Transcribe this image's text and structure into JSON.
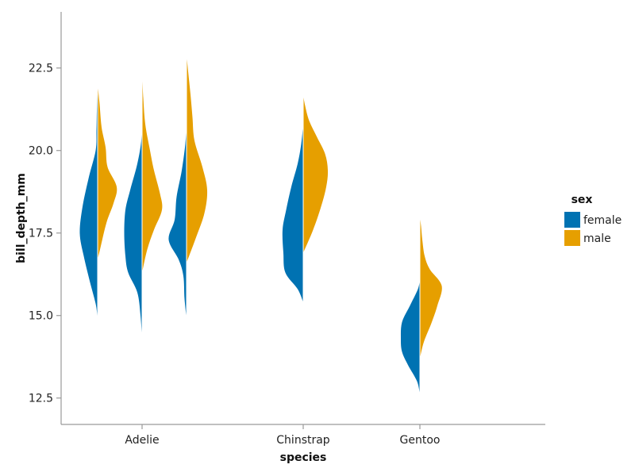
{
  "chart_data": {
    "type": "violin",
    "orientation": "vertical",
    "split": true,
    "xlabel": "species",
    "ylabel": "bill_depth_mm",
    "ylim": [
      11.7,
      24.2
    ],
    "yticks": [
      12.5,
      15.0,
      17.5,
      20.0,
      22.5
    ],
    "ytick_labels": [
      "12.5",
      "15.0",
      "17.5",
      "20.0",
      "22.5"
    ],
    "categories": [
      "Adelie",
      "Chinstrap",
      "Gentoo"
    ],
    "legend": {
      "title": "sex",
      "placement": "right",
      "entries": [
        {
          "label": "female",
          "color": "#0072b2"
        },
        {
          "label": "male",
          "color": "#e69f00"
        }
      ]
    },
    "grid": false,
    "violins": [
      {
        "category": "Adelie",
        "offset": -1,
        "female": {
          "y": [
            14.8,
            15.3,
            16.0,
            16.8,
            17.5,
            18.3,
            19.2,
            20.0,
            20.6,
            21.2,
            21.7,
            22.0
          ],
          "w": [
            0.0,
            0.04,
            0.19,
            0.35,
            0.45,
            0.38,
            0.22,
            0.05,
            0.03,
            0.02,
            0.01,
            0.0
          ]
        },
        "male": {
          "y": [
            16.7,
            17.0,
            17.8,
            18.4,
            18.9,
            19.5,
            20.1,
            20.7,
            21.4,
            22.0
          ],
          "w": [
            0.0,
            0.06,
            0.22,
            0.4,
            0.48,
            0.25,
            0.2,
            0.1,
            0.05,
            0.0
          ]
        }
      },
      {
        "category": "Adelie",
        "offset": 0,
        "female": {
          "y": [
            14.3,
            15.0,
            15.7,
            16.3,
            16.8,
            17.5,
            18.2,
            18.8,
            19.6,
            20.3,
            21.0
          ],
          "w": [
            0.0,
            0.04,
            0.12,
            0.35,
            0.42,
            0.45,
            0.42,
            0.3,
            0.12,
            0.02,
            0.0
          ]
        },
        "male": {
          "y": [
            16.3,
            17.0,
            17.6,
            18.2,
            18.7,
            19.4,
            20.0,
            20.8,
            21.6,
            22.4
          ],
          "w": [
            0.0,
            0.13,
            0.3,
            0.5,
            0.45,
            0.3,
            0.2,
            0.08,
            0.03,
            0.0
          ]
        }
      },
      {
        "category": "Adelie",
        "offset": 1,
        "female": {
          "y": [
            14.9,
            15.5,
            16.2,
            16.7,
            17.3,
            17.9,
            18.6,
            19.4,
            20.2,
            20.8
          ],
          "w": [
            0.0,
            0.05,
            0.08,
            0.2,
            0.45,
            0.3,
            0.25,
            0.12,
            0.03,
            0.0
          ]
        },
        "male": {
          "y": [
            16.6,
            17.4,
            18.1,
            18.8,
            19.5,
            20.3,
            21.0,
            21.7,
            22.4,
            22.9
          ],
          "w": [
            0.0,
            0.25,
            0.45,
            0.52,
            0.4,
            0.2,
            0.15,
            0.1,
            0.04,
            0.0
          ]
        }
      },
      {
        "category": "Chinstrap",
        "offset": 0,
        "female": {
          "y": [
            15.4,
            15.8,
            16.3,
            16.9,
            17.6,
            18.2,
            18.9,
            19.6,
            20.2,
            20.8
          ],
          "w": [
            0.0,
            0.14,
            0.45,
            0.5,
            0.52,
            0.43,
            0.3,
            0.14,
            0.05,
            0.0
          ]
        },
        "male": {
          "y": [
            16.9,
            17.6,
            18.3,
            18.9,
            19.4,
            19.9,
            20.4,
            20.9,
            21.4,
            21.7
          ],
          "w": [
            0.0,
            0.25,
            0.45,
            0.58,
            0.62,
            0.55,
            0.35,
            0.15,
            0.04,
            0.0
          ]
        }
      },
      {
        "category": "Gentoo",
        "offset": 0,
        "female": {
          "y": [
            12.6,
            13.0,
            13.5,
            13.9,
            14.3,
            14.8,
            15.3,
            15.8,
            16.1
          ],
          "w": [
            0.0,
            0.07,
            0.3,
            0.45,
            0.48,
            0.45,
            0.25,
            0.05,
            0.0
          ]
        },
        "male": {
          "y": [
            13.7,
            14.2,
            14.8,
            15.3,
            15.9,
            16.4,
            16.8,
            17.3,
            17.7,
            18.0
          ],
          "w": [
            0.0,
            0.1,
            0.3,
            0.44,
            0.55,
            0.25,
            0.12,
            0.06,
            0.03,
            0.0
          ]
        }
      }
    ]
  }
}
